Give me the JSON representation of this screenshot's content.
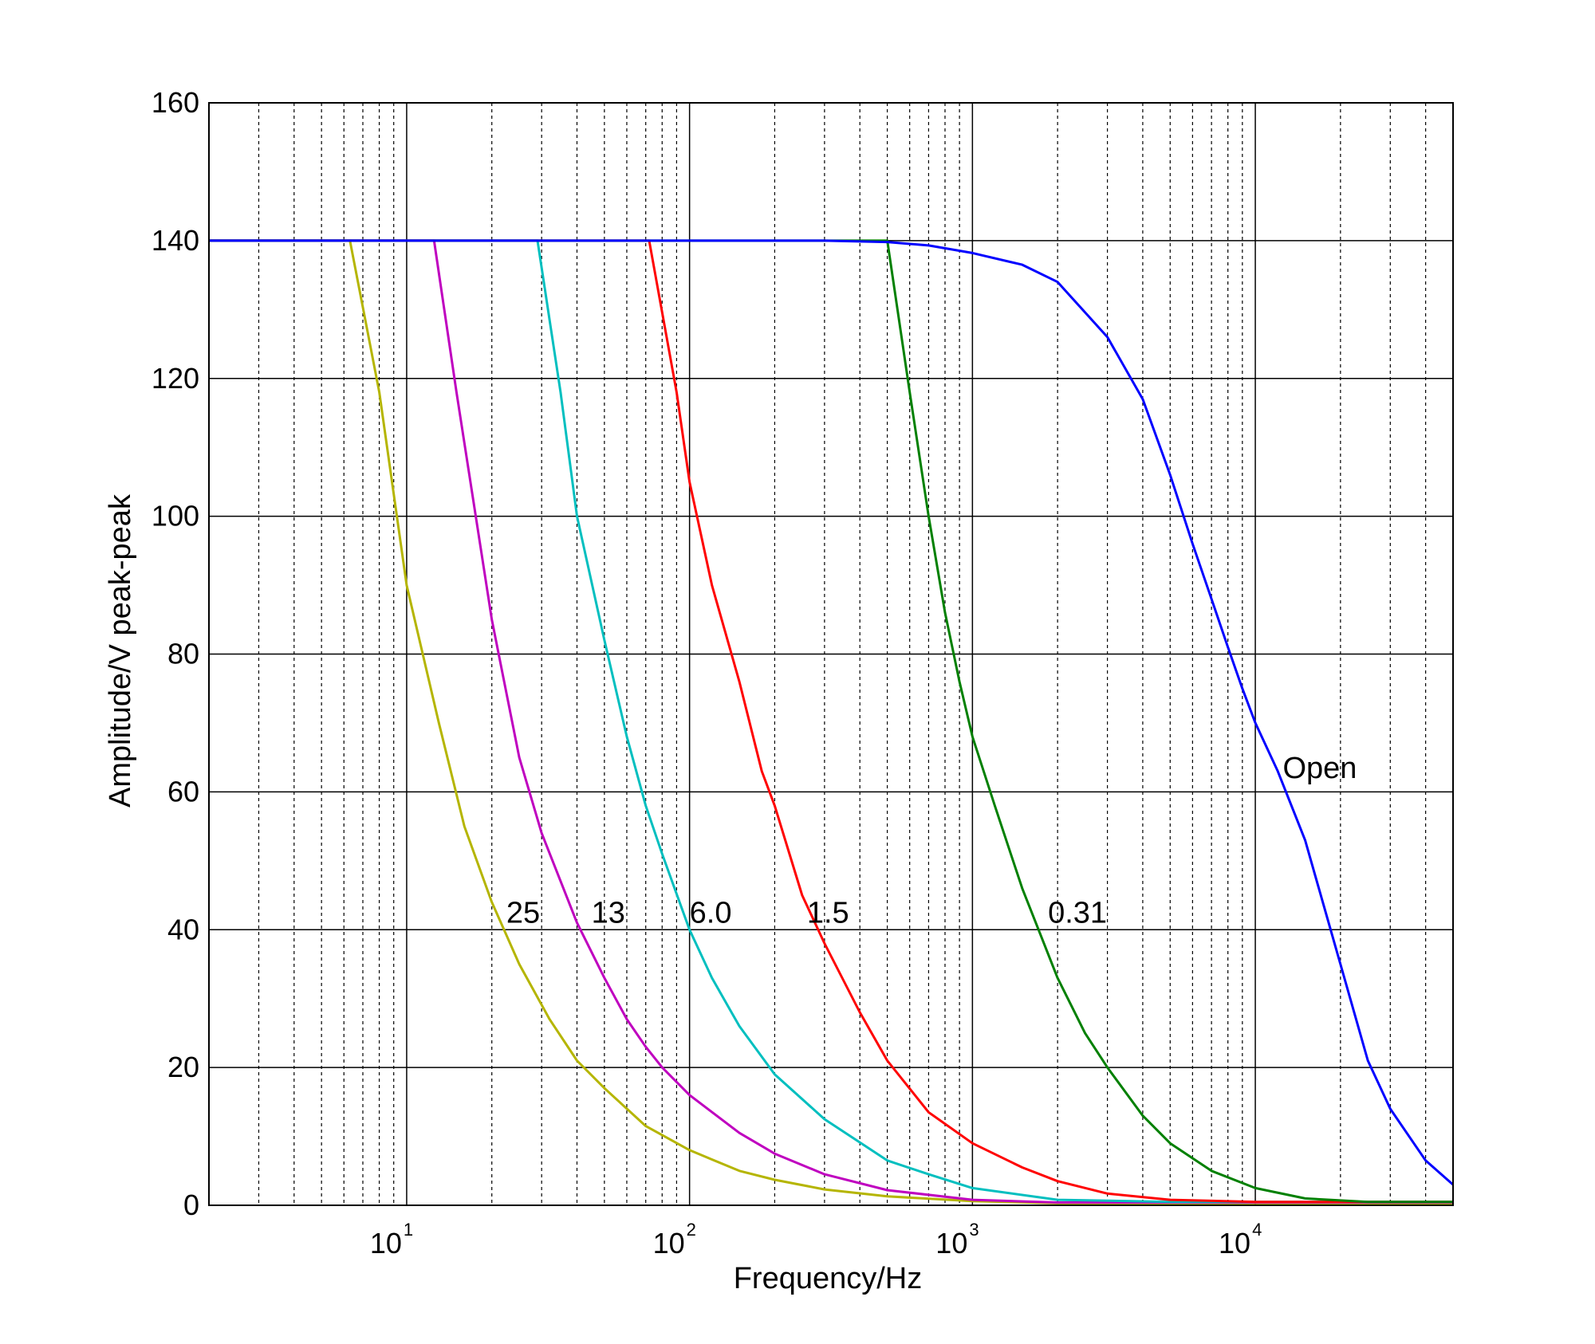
{
  "chart_data": {
    "type": "line",
    "xscale": "log",
    "xlim": [
      2,
      50000
    ],
    "ylim": [
      0,
      160
    ],
    "xlabel": "Frequency/Hz",
    "ylabel": "Amplitude/V peak-peak",
    "grid": true,
    "x_ticks": [
      {
        "base": "10",
        "exp": "1",
        "value": 10
      },
      {
        "base": "10",
        "exp": "2",
        "value": 100
      },
      {
        "base": "10",
        "exp": "3",
        "value": 1000
      },
      {
        "base": "10",
        "exp": "4",
        "value": 10000
      }
    ],
    "y_ticks": [
      0,
      20,
      40,
      60,
      80,
      100,
      120,
      140,
      160
    ],
    "y_tick_labels": [
      "0",
      "20",
      "40",
      "60",
      "80",
      "100",
      "120",
      "140",
      "160"
    ],
    "series": [
      {
        "label": "25",
        "color": "#b5b500",
        "label_at": [
          22.5,
          41
        ],
        "x": [
          2,
          6.3,
          8,
          10,
          13,
          16,
          20,
          25,
          32,
          40,
          50,
          70,
          100,
          150,
          200,
          300,
          500,
          1000,
          2000,
          50000
        ],
        "y": [
          140,
          140,
          118,
          90,
          70,
          55,
          44,
          35,
          27,
          21,
          17,
          11.5,
          8,
          5,
          3.7,
          2.3,
          1.3,
          0.6,
          0.3,
          0.3
        ]
      },
      {
        "label": "13",
        "color": "#bf00bf",
        "label_at": [
          45,
          41
        ],
        "x": [
          2,
          12.5,
          15,
          20,
          25,
          30,
          40,
          50,
          60,
          70,
          80,
          100,
          150,
          200,
          300,
          500,
          1000,
          2000,
          50000
        ],
        "y": [
          140,
          140,
          118,
          85,
          65,
          54,
          41,
          33,
          27,
          23,
          20,
          16,
          10.5,
          7.5,
          4.5,
          2.2,
          0.8,
          0.4,
          0.4
        ]
      },
      {
        "label": "6.0",
        "color": "#00bfbf",
        "label_at": [
          100,
          41
        ],
        "x": [
          2,
          29,
          35,
          40,
          50,
          60,
          70,
          80,
          100,
          120,
          150,
          200,
          300,
          500,
          700,
          1000,
          2000,
          5000,
          50000
        ],
        "y": [
          140,
          140,
          118,
          100,
          82,
          68,
          58,
          51,
          40,
          33,
          26,
          19,
          12.5,
          6.5,
          4.5,
          2.5,
          0.8,
          0.5,
          0.5
        ]
      },
      {
        "label": "1.5",
        "color": "#ff0000",
        "label_at": [
          260,
          41
        ],
        "x": [
          2,
          72,
          90,
          100,
          120,
          150,
          180,
          200,
          250,
          300,
          400,
          500,
          700,
          1000,
          1500,
          2000,
          3000,
          5000,
          10000,
          50000
        ],
        "y": [
          140,
          140,
          118,
          105,
          90,
          76,
          63,
          58,
          45,
          38,
          28,
          21,
          13.5,
          9,
          5.5,
          3.5,
          1.7,
          0.8,
          0.5,
          0.5
        ]
      },
      {
        "label": "0.31",
        "color": "#008000",
        "label_at": [
          1850,
          41
        ],
        "x": [
          2,
          500,
          600,
          700,
          800,
          900,
          1000,
          1200,
          1500,
          2000,
          2500,
          3000,
          4000,
          5000,
          7000,
          10000,
          15000,
          25000,
          50000
        ],
        "y": [
          140,
          140,
          118,
          100,
          86,
          76,
          68,
          58,
          46,
          33,
          25,
          20,
          13,
          9,
          5,
          2.5,
          1,
          0.5,
          0.5
        ]
      },
      {
        "label": "Open",
        "color": "#0000ff",
        "label_at": [
          12500,
          62
        ],
        "x": [
          2,
          300,
          500,
          700,
          1000,
          1500,
          2000,
          3000,
          4000,
          5000,
          6000,
          7000,
          8000,
          9000,
          10000,
          12000,
          15000,
          20000,
          25000,
          30000,
          40000,
          50000
        ],
        "y": [
          140,
          140,
          139.8,
          139.3,
          138.2,
          136.5,
          134,
          126,
          117,
          106,
          96,
          88,
          81,
          75,
          70,
          63,
          53,
          35,
          21,
          14,
          6.5,
          3
        ]
      }
    ]
  }
}
